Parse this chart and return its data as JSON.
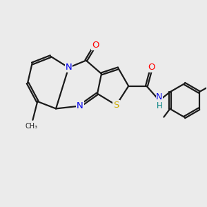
{
  "background_color": "#ebebeb",
  "bond_color": "#1a1a1a",
  "atom_colors": {
    "O": "#ff0000",
    "N": "#0000ee",
    "S": "#ccaa00",
    "H": "#008080",
    "C": "#1a1a1a"
  },
  "figsize": [
    3.0,
    3.0
  ],
  "dpi": 100,
  "lw": 1.6,
  "ds": 0.05
}
